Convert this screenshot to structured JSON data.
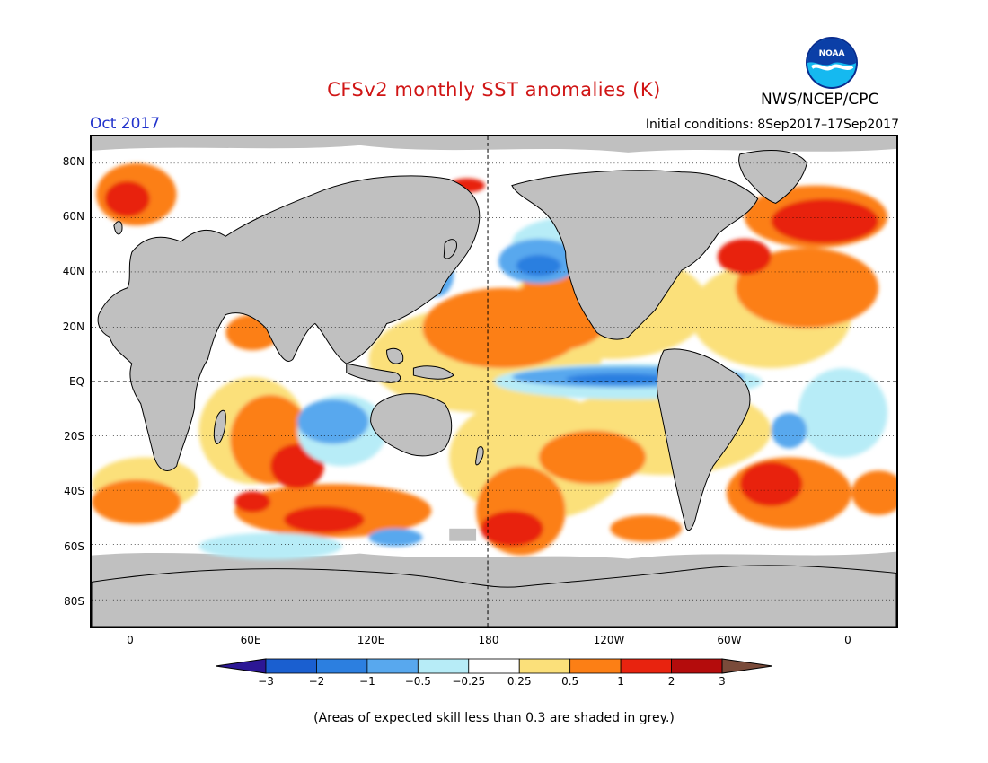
{
  "header": {
    "title": "CFSv2 monthly SST anomalies (K)",
    "period": "Oct 2017",
    "organization": "NWS/NCEP/CPC",
    "initial_conditions": "Initial conditions: 8Sep2017–17Sep2017",
    "logo_text": "NOAA"
  },
  "map": {
    "projection": "cylindrical equidistant",
    "lat_labels": [
      "80N",
      "60N",
      "40N",
      "20N",
      "EQ",
      "20S",
      "40S",
      "60S",
      "80S"
    ],
    "lon_labels": [
      "0",
      "60E",
      "120E",
      "180",
      "120W",
      "60W",
      "0"
    ],
    "colors": {
      "land": "#c0c0c0",
      "low_skill": "#c0c0c0",
      "ocean_neutral": "#ffffff",
      "coastline": "#000000"
    }
  },
  "colorbar": {
    "labels": [
      "−3",
      "−2",
      "−1",
      "−0.5",
      "−0.25",
      "0.25",
      "0.5",
      "1",
      "2",
      "3"
    ],
    "under_color": "#2c1795",
    "over_color": "#7a4b3a",
    "colors": [
      "#1a5fd0",
      "#2c7fe0",
      "#58a8ee",
      "#b7ecf7",
      "#ffffff",
      "#fbe07a",
      "#fc7f15",
      "#e8230f",
      "#b40c0c"
    ]
  },
  "footnote": "(Areas of expected skill less than 0.3 are shaded in grey.)"
}
